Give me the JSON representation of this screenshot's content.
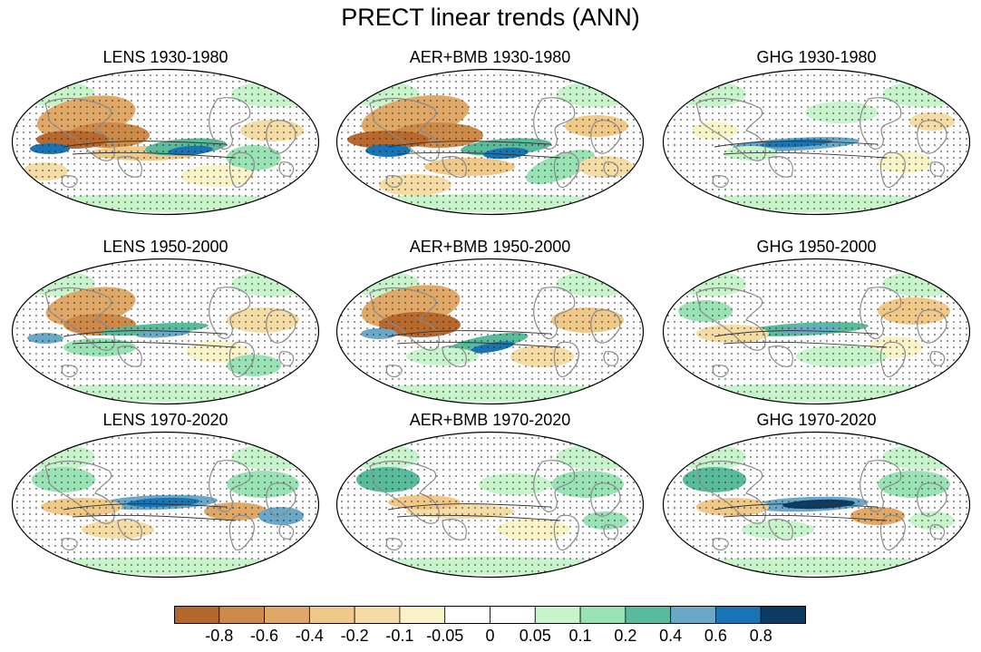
{
  "title": "PRECT linear trends (ANN)",
  "panels": [
    {
      "label": "LENS 1930-1980",
      "style": "lens-early"
    },
    {
      "label": "AER+BMB 1930-1980",
      "style": "aer-early"
    },
    {
      "label": "GHG 1930-1980",
      "style": "ghg-early"
    },
    {
      "label": "LENS 1950-2000",
      "style": "lens-mid"
    },
    {
      "label": "AER+BMB 1950-2000",
      "style": "aer-mid"
    },
    {
      "label": "GHG 1950-2000",
      "style": "ghg-mid"
    },
    {
      "label": "LENS 1970-2020",
      "style": "lens-late"
    },
    {
      "label": "AER+BMB 1970-2020",
      "style": "aer-late"
    },
    {
      "label": "GHG 1970-2020",
      "style": "ghg-late"
    }
  ],
  "colorbar": {
    "labels": [
      "-0.8",
      "-0.6",
      "-0.4",
      "-0.2",
      "-0.1",
      "-0.05",
      "0",
      "0.05",
      "0.1",
      "0.2",
      "0.4",
      "0.6",
      "0.8"
    ],
    "colors": [
      "#b4682c",
      "#cd8a48",
      "#e0a866",
      "#f0c888",
      "#f5dca4",
      "#fbf3c8",
      "#ffffff",
      "#ffffff",
      "#c8f4cc",
      "#98e2b4",
      "#58bc9c",
      "#6aa8c8",
      "#1874b4",
      "#0c3c64"
    ]
  }
}
